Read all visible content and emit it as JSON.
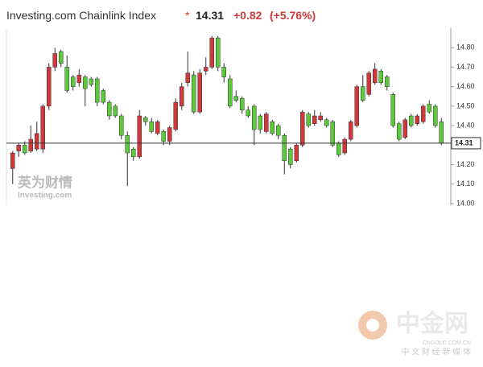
{
  "chart_data": {
    "type": "candlestick",
    "title": "Investing.com Chainlink Index",
    "marker": "*",
    "price": 14.31,
    "change": "+0.82",
    "change_pct": "(+5.76%)",
    "up_color": "#d0393b",
    "down_color": "#5cc93a",
    "open": [
      14.18,
      14.27,
      14.3,
      14.27,
      14.28,
      14.28,
      14.5,
      14.7,
      14.78,
      14.7,
      14.65,
      14.62,
      14.65,
      14.64,
      14.64,
      14.58,
      14.52,
      14.5,
      14.45,
      14.35,
      14.28,
      14.24,
      14.44,
      14.42,
      14.36,
      14.37,
      14.32,
      14.38,
      14.5,
      14.62,
      14.66,
      14.47,
      14.68,
      14.7,
      14.85,
      14.7,
      14.64,
      14.55,
      14.54,
      14.48,
      14.5,
      14.45,
      14.37,
      14.42,
      14.4,
      14.35,
      14.28,
      14.22,
      14.3,
      14.46,
      14.41,
      14.43,
      14.43,
      14.42,
      14.31,
      14.26,
      14.33,
      14.4,
      14.6,
      14.56,
      14.62,
      14.68,
      14.65,
      14.56,
      14.41,
      14.34,
      14.45,
      14.41,
      14.42,
      14.51,
      14.5,
      14.42
    ],
    "high": [
      14.27,
      14.31,
      14.32,
      14.4,
      14.42,
      14.51,
      14.72,
      14.8,
      14.79,
      14.76,
      14.66,
      14.69,
      14.66,
      14.65,
      14.65,
      14.59,
      14.53,
      14.51,
      14.46,
      14.37,
      14.29,
      14.48,
      14.45,
      14.44,
      14.43,
      14.38,
      14.4,
      14.54,
      14.62,
      14.78,
      14.68,
      14.69,
      14.75,
      14.86,
      14.86,
      14.72,
      14.66,
      14.58,
      14.55,
      14.5,
      14.51,
      14.46,
      14.47,
      14.43,
      14.41,
      14.36,
      14.29,
      14.31,
      14.48,
      14.47,
      14.48,
      14.47,
      14.44,
      14.43,
      14.32,
      14.34,
      14.43,
      14.61,
      14.66,
      14.68,
      14.72,
      14.69,
      14.66,
      14.57,
      14.42,
      14.44,
      14.46,
      14.46,
      14.51,
      14.53,
      14.51,
      14.44
    ],
    "low": [
      14.1,
      14.24,
      14.25,
      14.26,
      14.27,
      14.26,
      14.48,
      14.68,
      14.7,
      14.57,
      14.58,
      14.6,
      14.5,
      14.6,
      14.5,
      14.51,
      14.43,
      14.44,
      14.33,
      14.09,
      14.22,
      14.23,
      14.4,
      14.36,
      14.35,
      14.3,
      14.3,
      14.37,
      14.48,
      14.6,
      14.46,
      14.46,
      14.66,
      14.69,
      14.68,
      14.62,
      14.49,
      14.52,
      14.46,
      14.44,
      14.3,
      14.36,
      14.36,
      14.35,
      14.33,
      14.15,
      14.18,
      14.21,
      14.29,
      14.39,
      14.4,
      14.42,
      14.39,
      14.29,
      14.24,
      14.25,
      14.32,
      14.39,
      14.52,
      14.55,
      14.61,
      14.61,
      14.58,
      14.39,
      14.32,
      14.33,
      14.39,
      14.4,
      14.41,
      14.46,
      14.39,
      14.3
    ],
    "close": [
      14.26,
      14.3,
      14.26,
      14.33,
      14.36,
      14.5,
      14.7,
      14.77,
      14.72,
      14.58,
      14.6,
      14.66,
      14.59,
      14.61,
      14.52,
      14.52,
      14.45,
      14.45,
      14.35,
      14.26,
      14.24,
      14.45,
      14.42,
      14.37,
      14.42,
      14.32,
      14.39,
      14.52,
      14.6,
      14.67,
      14.47,
      14.67,
      14.7,
      14.85,
      14.7,
      14.65,
      14.5,
      14.53,
      14.48,
      14.45,
      14.38,
      14.38,
      14.46,
      14.36,
      14.35,
      14.22,
      14.2,
      14.3,
      14.47,
      14.4,
      14.45,
      14.45,
      14.4,
      14.3,
      14.25,
      14.33,
      14.42,
      14.6,
      14.53,
      14.67,
      14.69,
      14.62,
      14.6,
      14.4,
      14.33,
      14.43,
      14.4,
      14.45,
      14.5,
      14.47,
      14.4,
      14.31
    ],
    "ylim": [
      14.0,
      14.9
    ],
    "yticks": [
      {
        "value": 14.0,
        "label": "14.00"
      },
      {
        "value": 14.1,
        "label": "14.10"
      },
      {
        "value": 14.2,
        "label": "14.20"
      },
      {
        "value": 14.4,
        "label": "14.40"
      },
      {
        "value": 14.5,
        "label": "14.50"
      },
      {
        "value": 14.6,
        "label": "14.60"
      },
      {
        "value": 14.7,
        "label": "14.70"
      },
      {
        "value": 14.8,
        "label": "14.80"
      }
    ],
    "grid": false
  },
  "watermarks": {
    "investing_cn": "英为财情",
    "investing": "Investing.com",
    "cngold": "中金网",
    "cngold_url": "CNGOLD.COM.CN",
    "cngold_slogan": "中 文 财 经 新 媒 体"
  }
}
